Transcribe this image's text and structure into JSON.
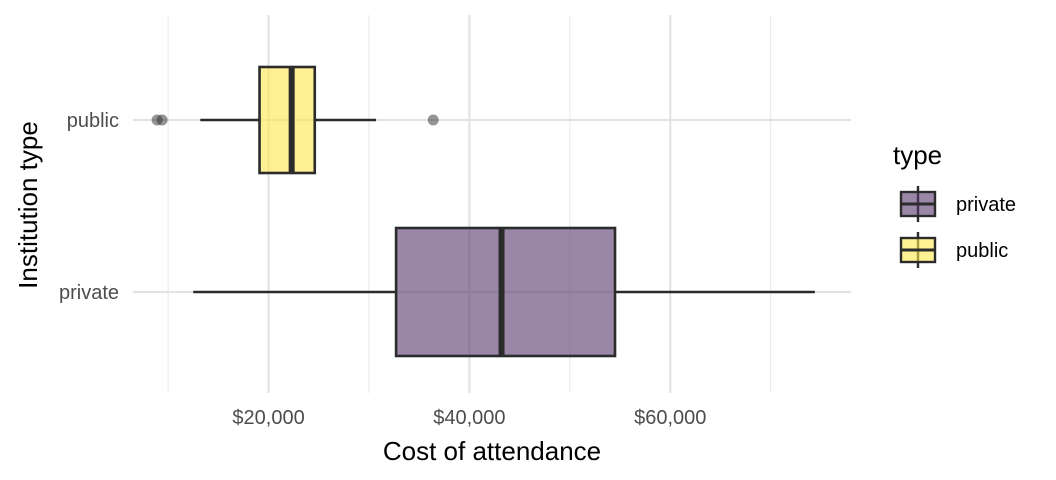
{
  "chart_data": {
    "type": "boxplot",
    "orientation": "horizontal",
    "xlabel": "Cost of attendance",
    "ylabel": "Institution type",
    "xlim": [
      6500,
      78000
    ],
    "x_ticks": [
      {
        "value": 20000,
        "label": "$20,000"
      },
      {
        "value": 40000,
        "label": "$40,000"
      },
      {
        "value": 60000,
        "label": "$60,000"
      }
    ],
    "x_minor_ticks": [
      10000,
      30000,
      50000,
      70000
    ],
    "categories": [
      "public",
      "private"
    ],
    "grid": true,
    "series": [
      {
        "name": "public",
        "color": "#FDE74C",
        "whisker_low": 13200,
        "q1": 19100,
        "median": 22300,
        "q3": 24600,
        "whisker_high": 30700,
        "outliers": [
          8900,
          9400,
          36400
        ]
      },
      {
        "name": "private",
        "color": "#56376E",
        "whisker_low": 12500,
        "q1": 32700,
        "median": 43200,
        "q3": 54500,
        "whisker_high": 74400,
        "outliers": []
      }
    ],
    "legend": {
      "title": "type",
      "placement": "right",
      "entries": [
        {
          "label": "private",
          "color": "#56376E"
        },
        {
          "label": "public",
          "color": "#FDE74C"
        }
      ]
    }
  }
}
